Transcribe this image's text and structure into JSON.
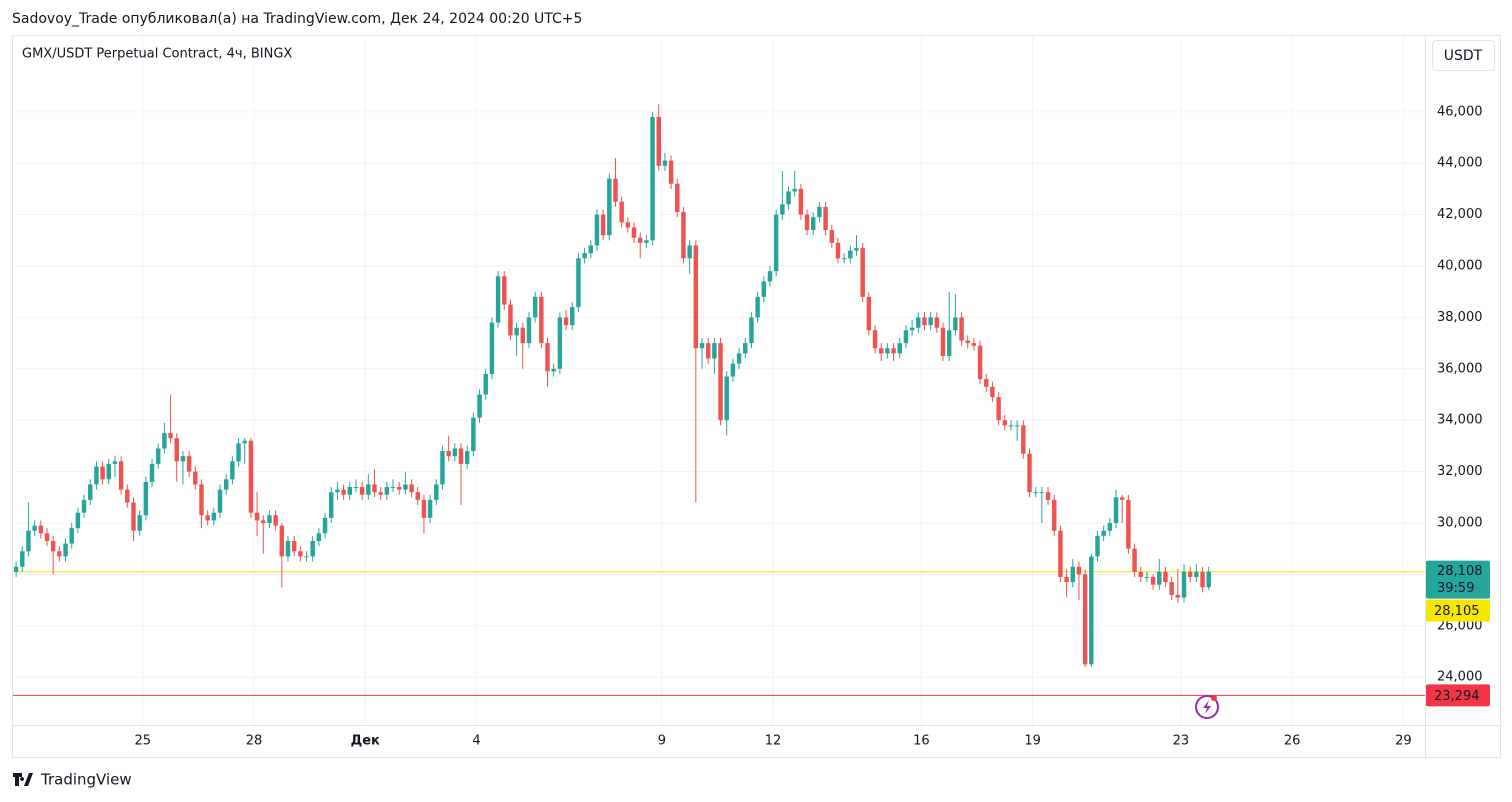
{
  "header": "Sadovoy_Trade опубликовал(а) на TradingView.com, Дек 24, 2024 00:20 UTC+5",
  "footer": "TradingView",
  "chart_data": {
    "type": "candlestick",
    "title": "GMX/USDT Perpetual Contract, 4ч, BINGX",
    "currency": "USDT",
    "up_color": "#26a69a",
    "down_color": "#ef5350",
    "grid": true,
    "ylim": [
      22140,
      48950
    ],
    "yticks": [
      {
        "value": 24000,
        "label": "24,000"
      },
      {
        "value": 26000,
        "label": "26,000"
      },
      {
        "value": 28000,
        "label": "28,000"
      },
      {
        "value": 30000,
        "label": "30,000"
      },
      {
        "value": 32000,
        "label": "32,000"
      },
      {
        "value": 34000,
        "label": "34,000"
      },
      {
        "value": 36000,
        "label": "36,000"
      },
      {
        "value": 38000,
        "label": "38,000"
      },
      {
        "value": 40000,
        "label": "40,000"
      },
      {
        "value": 42000,
        "label": "42,000"
      },
      {
        "value": 44000,
        "label": "44,000"
      },
      {
        "value": 46000,
        "label": "46,000"
      }
    ],
    "xlim": [
      -0.5,
      228
    ],
    "xticks": [
      {
        "value": 20.5,
        "label": "25"
      },
      {
        "value": 38.5,
        "label": "28"
      },
      {
        "value": 56.5,
        "label": "Дек"
      },
      {
        "value": 74.5,
        "label": "4"
      },
      {
        "value": 104.5,
        "label": "9"
      },
      {
        "value": 122.5,
        "label": "12"
      },
      {
        "value": 146.5,
        "label": "16"
      },
      {
        "value": 164.5,
        "label": "19"
      },
      {
        "value": 188.5,
        "label": "23"
      },
      {
        "value": 206.5,
        "label": "26"
      },
      {
        "value": 224.5,
        "label": "29"
      }
    ],
    "last_price": {
      "value": 28108,
      "label": "28,108",
      "countdown": "39:59"
    },
    "levels": [
      {
        "value": 28105,
        "label": "28,105",
        "color": "#f7e600"
      },
      {
        "value": 23294,
        "label": "23,294",
        "color": "#f23645"
      }
    ],
    "candles": [
      [
        28100,
        28500,
        27900,
        28300
      ],
      [
        28300,
        29100,
        28100,
        28900
      ],
      [
        28900,
        30800,
        28700,
        29700
      ],
      [
        29700,
        30100,
        29500,
        29900
      ],
      [
        29900,
        30100,
        29400,
        29600
      ],
      [
        29600,
        29800,
        29100,
        29300
      ],
      [
        29300,
        29500,
        28000,
        28900
      ],
      [
        28900,
        29100,
        28500,
        28700
      ],
      [
        28700,
        29400,
        28500,
        29200
      ],
      [
        29200,
        30000,
        29000,
        29800
      ],
      [
        29800,
        30600,
        29600,
        30400
      ],
      [
        30400,
        31100,
        30200,
        30900
      ],
      [
        30900,
        31700,
        30700,
        31500
      ],
      [
        31500,
        32400,
        31300,
        32200
      ],
      [
        32200,
        32400,
        31500,
        31700
      ],
      [
        31700,
        32500,
        31500,
        32300
      ],
      [
        32300,
        32600,
        31800,
        32400
      ],
      [
        32400,
        32600,
        31100,
        31300
      ],
      [
        31300,
        31500,
        30600,
        30800
      ],
      [
        30800,
        31000,
        29300,
        29700
      ],
      [
        29700,
        30500,
        29500,
        30300
      ],
      [
        30300,
        31800,
        30100,
        31600
      ],
      [
        31600,
        32500,
        31400,
        32300
      ],
      [
        32300,
        33100,
        32100,
        32900
      ],
      [
        32900,
        33900,
        32700,
        33500
      ],
      [
        33500,
        35000,
        33100,
        33300
      ],
      [
        33300,
        33500,
        31600,
        32400
      ],
      [
        32400,
        32800,
        31500,
        32600
      ],
      [
        32600,
        32800,
        31800,
        32000
      ],
      [
        32000,
        32200,
        31300,
        31500
      ],
      [
        31500,
        31700,
        29800,
        30300
      ],
      [
        30300,
        30500,
        29900,
        30100
      ],
      [
        30100,
        30600,
        29900,
        30400
      ],
      [
        30400,
        31500,
        30200,
        31300
      ],
      [
        31300,
        31900,
        31100,
        31700
      ],
      [
        31700,
        32600,
        31500,
        32400
      ],
      [
        32400,
        33300,
        32200,
        33100
      ],
      [
        33100,
        33300,
        32300,
        33200
      ],
      [
        33200,
        33300,
        30200,
        30400
      ],
      [
        30400,
        31200,
        29500,
        30100
      ],
      [
        30100,
        30300,
        28800,
        30000
      ],
      [
        30000,
        30500,
        29800,
        30300
      ],
      [
        30300,
        30500,
        29700,
        29900
      ],
      [
        29900,
        30000,
        27500,
        28700
      ],
      [
        28700,
        29500,
        28500,
        29300
      ],
      [
        29300,
        29500,
        28700,
        28900
      ],
      [
        28900,
        29100,
        28500,
        28700
      ],
      [
        28700,
        28900,
        28500,
        28700
      ],
      [
        28700,
        29500,
        28500,
        29300
      ],
      [
        29300,
        29800,
        29100,
        29600
      ],
      [
        29600,
        30400,
        29400,
        30200
      ],
      [
        30200,
        31400,
        30000,
        31200
      ],
      [
        31200,
        31600,
        30900,
        31300
      ],
      [
        31300,
        31500,
        30900,
        31100
      ],
      [
        31100,
        31600,
        30900,
        31400
      ],
      [
        31400,
        31700,
        31200,
        31400
      ],
      [
        31400,
        31600,
        30900,
        31100
      ],
      [
        31100,
        31900,
        30900,
        31500
      ],
      [
        31500,
        32100,
        31000,
        31200
      ],
      [
        31200,
        31400,
        30900,
        31100
      ],
      [
        31100,
        31600,
        30900,
        31400
      ],
      [
        31400,
        31700,
        31200,
        31400
      ],
      [
        31400,
        31600,
        31100,
        31300
      ],
      [
        31300,
        32000,
        31100,
        31500
      ],
      [
        31500,
        31700,
        31000,
        31200
      ],
      [
        31200,
        31400,
        30700,
        30900
      ],
      [
        30900,
        31100,
        29600,
        30200
      ],
      [
        30200,
        31100,
        30000,
        30900
      ],
      [
        30900,
        31700,
        30700,
        31500
      ],
      [
        31500,
        33000,
        31300,
        32800
      ],
      [
        32800,
        33400,
        32400,
        32600
      ],
      [
        32600,
        33100,
        32400,
        32900
      ],
      [
        32900,
        33100,
        30700,
        32300
      ],
      [
        32300,
        33000,
        32100,
        32800
      ],
      [
        32800,
        34300,
        32600,
        34100
      ],
      [
        34100,
        35200,
        33900,
        35000
      ],
      [
        35000,
        36000,
        34800,
        35800
      ],
      [
        35800,
        38000,
        35600,
        37800
      ],
      [
        37800,
        39800,
        37600,
        39600
      ],
      [
        39600,
        39800,
        38300,
        38500
      ],
      [
        38500,
        38700,
        37100,
        37300
      ],
      [
        37300,
        37800,
        36500,
        37600
      ],
      [
        37600,
        37800,
        36000,
        37000
      ],
      [
        37000,
        38200,
        36800,
        38000
      ],
      [
        38000,
        39000,
        37800,
        38800
      ],
      [
        38800,
        39000,
        36800,
        37000
      ],
      [
        37000,
        37200,
        35300,
        35900
      ],
      [
        35900,
        36200,
        35700,
        36000
      ],
      [
        36000,
        38200,
        35800,
        38000
      ],
      [
        38000,
        38300,
        37500,
        37700
      ],
      [
        37700,
        38600,
        37500,
        38400
      ],
      [
        38400,
        40500,
        38200,
        40300
      ],
      [
        40300,
        40700,
        40100,
        40500
      ],
      [
        40500,
        41000,
        40300,
        40800
      ],
      [
        40800,
        42200,
        40600,
        42000
      ],
      [
        42000,
        42200,
        41000,
        41200
      ],
      [
        41200,
        43600,
        41000,
        43400
      ],
      [
        43400,
        44200,
        42300,
        42500
      ],
      [
        42500,
        42700,
        41500,
        41700
      ],
      [
        41700,
        41900,
        41300,
        41500
      ],
      [
        41500,
        41700,
        40900,
        41100
      ],
      [
        41100,
        41300,
        40300,
        40900
      ],
      [
        40900,
        41200,
        40700,
        41000
      ],
      [
        41000,
        46000,
        40800,
        45800
      ],
      [
        45800,
        46300,
        43700,
        43900
      ],
      [
        43900,
        44400,
        43700,
        44100
      ],
      [
        44100,
        44300,
        43000,
        43200
      ],
      [
        43200,
        43400,
        41900,
        42100
      ],
      [
        42100,
        42300,
        40100,
        40300
      ],
      [
        40300,
        41000,
        39700,
        40800
      ],
      [
        40800,
        41000,
        30800,
        36800
      ],
      [
        36800,
        37200,
        36000,
        37000
      ],
      [
        37000,
        37200,
        36200,
        36400
      ],
      [
        36400,
        37200,
        35800,
        37000
      ],
      [
        37000,
        37200,
        33800,
        34000
      ],
      [
        34000,
        35900,
        33400,
        35700
      ],
      [
        35700,
        36400,
        35500,
        36200
      ],
      [
        36200,
        36800,
        36000,
        36600
      ],
      [
        36600,
        37200,
        36400,
        37000
      ],
      [
        37000,
        38200,
        36800,
        38000
      ],
      [
        38000,
        39000,
        37800,
        38800
      ],
      [
        38800,
        39600,
        38600,
        39400
      ],
      [
        39400,
        40000,
        39200,
        39800
      ],
      [
        39800,
        42200,
        39600,
        42000
      ],
      [
        42000,
        43700,
        41800,
        42400
      ],
      [
        42400,
        43100,
        42200,
        42900
      ],
      [
        42900,
        43700,
        42700,
        43000
      ],
      [
        43000,
        43200,
        41800,
        42000
      ],
      [
        42000,
        42200,
        41200,
        41400
      ],
      [
        41400,
        42100,
        41200,
        41900
      ],
      [
        41900,
        42500,
        41700,
        42300
      ],
      [
        42300,
        42500,
        41200,
        41400
      ],
      [
        41400,
        41600,
        40700,
        40900
      ],
      [
        40900,
        41100,
        40100,
        40300
      ],
      [
        40300,
        40500,
        40100,
        40300
      ],
      [
        40300,
        40800,
        40100,
        40600
      ],
      [
        40600,
        41200,
        40400,
        40700
      ],
      [
        40700,
        40900,
        38600,
        38800
      ],
      [
        38800,
        39000,
        37300,
        37500
      ],
      [
        37500,
        37700,
        36600,
        36800
      ],
      [
        36800,
        37000,
        36300,
        36600
      ],
      [
        36600,
        37000,
        36400,
        36800
      ],
      [
        36800,
        37000,
        36300,
        36600
      ],
      [
        36600,
        37200,
        36400,
        37000
      ],
      [
        37000,
        37700,
        36800,
        37500
      ],
      [
        37500,
        37900,
        37300,
        37600
      ],
      [
        37600,
        38200,
        37400,
        38000
      ],
      [
        38000,
        38200,
        37500,
        37700
      ],
      [
        37700,
        38200,
        37500,
        38000
      ],
      [
        38000,
        38200,
        37400,
        37600
      ],
      [
        37600,
        37800,
        36300,
        36500
      ],
      [
        36500,
        39000,
        36300,
        37500
      ],
      [
        37500,
        38900,
        37300,
        38000
      ],
      [
        38000,
        38200,
        36900,
        37100
      ],
      [
        37100,
        37300,
        36800,
        37000
      ],
      [
        37000,
        37200,
        36700,
        36900
      ],
      [
        36900,
        37100,
        35400,
        35600
      ],
      [
        35600,
        35800,
        35100,
        35300
      ],
      [
        35300,
        35500,
        34700,
        34900
      ],
      [
        34900,
        35100,
        33800,
        34000
      ],
      [
        34000,
        34200,
        33600,
        33800
      ],
      [
        33800,
        34000,
        33600,
        33800
      ],
      [
        33800,
        34000,
        33200,
        33800
      ],
      [
        33800,
        34000,
        32500,
        32700
      ],
      [
        32700,
        32900,
        31000,
        31200
      ],
      [
        31200,
        31400,
        31000,
        31200
      ],
      [
        31200,
        31400,
        30000,
        31200
      ],
      [
        31200,
        31400,
        30700,
        30900
      ],
      [
        30900,
        31100,
        29500,
        29700
      ],
      [
        29700,
        29900,
        27700,
        27900
      ],
      [
        27900,
        28200,
        27100,
        27700
      ],
      [
        27700,
        28600,
        27500,
        28300
      ],
      [
        28300,
        28500,
        27000,
        28000
      ],
      [
        28000,
        28200,
        24400,
        24500
      ],
      [
        24500,
        28800,
        24400,
        28700
      ],
      [
        28700,
        29700,
        28500,
        29500
      ],
      [
        29500,
        29900,
        29300,
        29700
      ],
      [
        29700,
        30200,
        29500,
        30000
      ],
      [
        30000,
        31300,
        29800,
        31000
      ],
      [
        31000,
        31100,
        30000,
        30900
      ],
      [
        30900,
        31100,
        28800,
        29000
      ],
      [
        29000,
        29200,
        27900,
        28100
      ],
      [
        28100,
        28300,
        27700,
        27900
      ],
      [
        27900,
        28100,
        27700,
        27900
      ],
      [
        27900,
        28000,
        27400,
        27600
      ],
      [
        27600,
        28600,
        27400,
        28100
      ],
      [
        28100,
        28300,
        27500,
        27700
      ],
      [
        27700,
        27900,
        27000,
        27200
      ],
      [
        27200,
        28200,
        26900,
        27100
      ],
      [
        27100,
        28400,
        26900,
        28100
      ],
      [
        28100,
        28300,
        27700,
        27900
      ],
      [
        27900,
        28400,
        27700,
        28100
      ],
      [
        28100,
        28300,
        27300,
        27500
      ],
      [
        27500,
        28300,
        27400,
        28108
      ]
    ]
  }
}
